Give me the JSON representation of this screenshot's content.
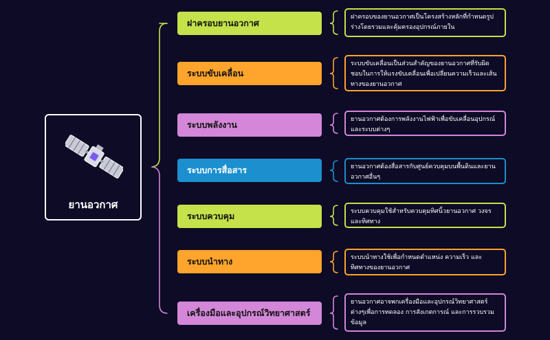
{
  "root": {
    "label": "ยานอวกาศ",
    "icon": "satellite-icon"
  },
  "colors": {
    "background": "#0d0b26",
    "green": "#c5e24a",
    "orange": "#ffa42c",
    "purple": "#d487d8",
    "blue": "#1c8fcf",
    "connector_top": "#c5e24a",
    "connector_bottom": "#d487d8"
  },
  "branches": [
    {
      "label": "ฝาครอบยานอวกาศ",
      "color": "#c5e24a",
      "description": "ฝาครอบของยานอวกาศเป็นโครงสร้างหลักที่กำหนดรูปร่างโดยรวมและคุ้มครองอุปกรณ์ภายใน"
    },
    {
      "label": "ระบบขับเคลื่อน",
      "color": "#ffa42c",
      "description": "ระบบขับเคลื่อนเป็นส่วนสำคัญของยานอวกาศที่รับผิดชอบในการให้แรงขับเคลื่อนเพื่อเปลี่ยนความเร็วและเส้นทางของยานอวกาศ"
    },
    {
      "label": "ระบบพลังงาน",
      "color": "#d487d8",
      "description": "ยานอวกาศต้องการพลังงานไฟฟ้าเพื่อขับเคลื่อนอุปกรณ์และระบบต่างๆ"
    },
    {
      "label": "ระบบการสื่อสาร",
      "color": "#1c8fcf",
      "description": "ยานอวกาศต้องสื่อสารกับศูนย์ควบคุมบนพื้นดินและยานอวกาศอื่นๆ"
    },
    {
      "label": "ระบบควบคุม",
      "color": "#c5e24a",
      "description": "ระบบควบคุมใช้สำหรับควบคุมทิศนิ้วยานอวกาศ วงจร และทิศทาง"
    },
    {
      "label": "ระบบนำทาง",
      "color": "#ffa42c",
      "description": "ระบบนำทางใช้เพื่อกำหนดตำแหน่ง ความเร็ว และทิศทางของยานอวกาศ"
    },
    {
      "label": "เครื่องมือและอุปกรณ์วิทยาศาสตร์",
      "color": "#d487d8",
      "description": "ยานอวกาศอาจพกเครื่องมือและอุปกรณ์วิทยาศาสตร์ต่างๆเพื่อการทดลอง การสังเกตการณ์ และการรวบรวมข้อมูล"
    }
  ]
}
